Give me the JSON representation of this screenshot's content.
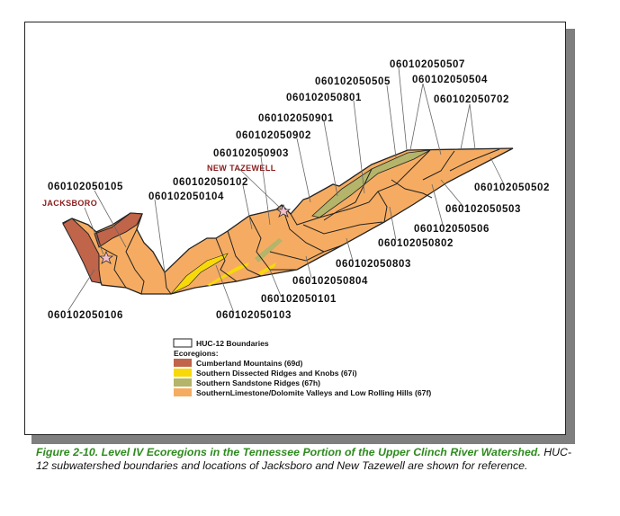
{
  "map": {
    "towns": {
      "jacksboro": "JACKSBORO",
      "new_tazewell": "NEW TAZEWELL"
    },
    "huc_labels": {
      "l0507": "060102050507",
      "l0505": "060102050505",
      "l0504": "060102050504",
      "l0801": "060102050801",
      "l0702": "060102050702",
      "l0901": "060102050901",
      "l0902": "060102050902",
      "l0903": "060102050903",
      "l0105": "060102050105",
      "l0102": "060102050102",
      "l0104": "060102050104",
      "l0502": "060102050502",
      "l0503": "060102050503",
      "l0506": "060102050506",
      "l0802": "060102050802",
      "l0803": "060102050803",
      "l0804": "060102050804",
      "l0101": "060102050101",
      "l0103": "060102050103",
      "l0106": "060102050106"
    },
    "legend": {
      "boundaries": "HUC-12 Boundaries",
      "ecoregions_title": "Ecoregions:",
      "items": [
        {
          "label": "Cumberland Mountains (69d)",
          "color": "#c0644a"
        },
        {
          "label": "Southern Dissected Ridges and Knobs (67i)",
          "color": "#f7d90a"
        },
        {
          "label": "Southern Sandstone Ridges (67h)",
          "color": "#b4b46a"
        },
        {
          "label": "SouthernLimestone/Dolomite Valleys and Low Rolling Hills (67f)",
          "color": "#f5ac62"
        }
      ]
    }
  },
  "caption": {
    "figure_title": "Figure 2-10. Level IV Ecoregions in the Tennessee Portion of the Upper Clinch River Watershed.",
    "text": " HUC-12 subwatershed boundaries and locations of Jacksboro and New Tazewell are shown for reference."
  }
}
